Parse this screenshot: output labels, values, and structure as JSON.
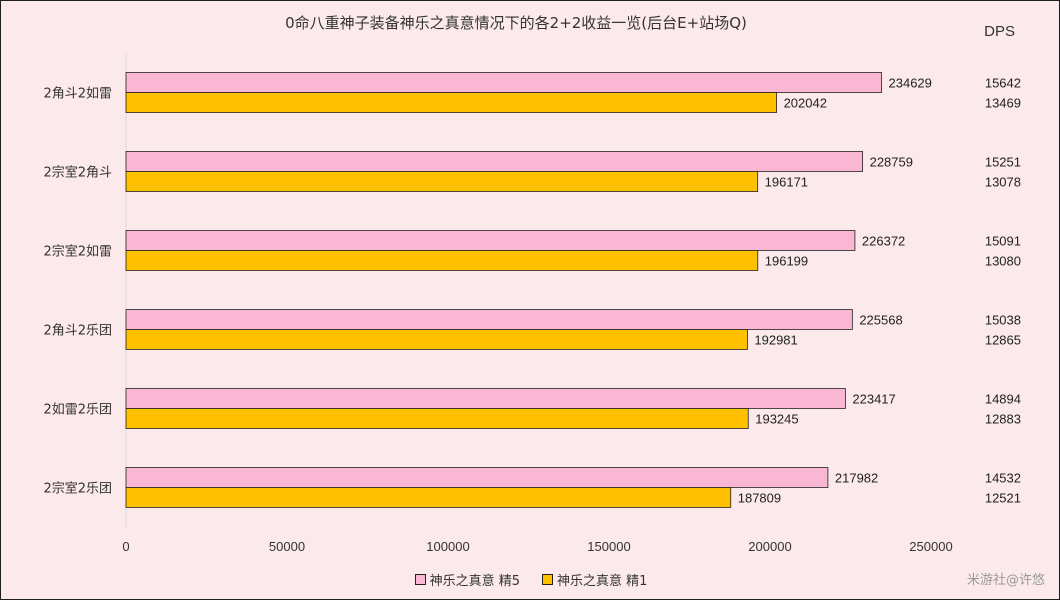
{
  "chart_data": {
    "type": "bar",
    "orientation": "horizontal",
    "title": "0命八重神子装备神乐之真意情况下的各2+2收益一览(后台E+站场Q)",
    "dps_header": "DPS",
    "categories": [
      "2角斗2如雷",
      "2宗室2角斗",
      "2宗室2如雷",
      "2角斗2乐团",
      "2如雷2乐团",
      "2宗室2乐团"
    ],
    "series": [
      {
        "name": "神乐之真意 精5",
        "color": "#f9b7d4",
        "values": [
          234629,
          228759,
          226372,
          225568,
          223417,
          217982
        ],
        "dps": [
          15642,
          15251,
          15091,
          15038,
          14894,
          14532
        ]
      },
      {
        "name": "神乐之真意 精1",
        "color": "#ffc000",
        "values": [
          202042,
          196171,
          196199,
          192981,
          193245,
          187809
        ],
        "dps": [
          13469,
          13078,
          13080,
          12865,
          12883,
          12521
        ]
      }
    ],
    "xlim": [
      0,
      250000
    ],
    "xticks": [
      "0",
      "50000",
      "100000",
      "150000",
      "200000",
      "250000"
    ],
    "grid": false,
    "legend_position": "bottom"
  },
  "watermark": "米游社@许悠"
}
